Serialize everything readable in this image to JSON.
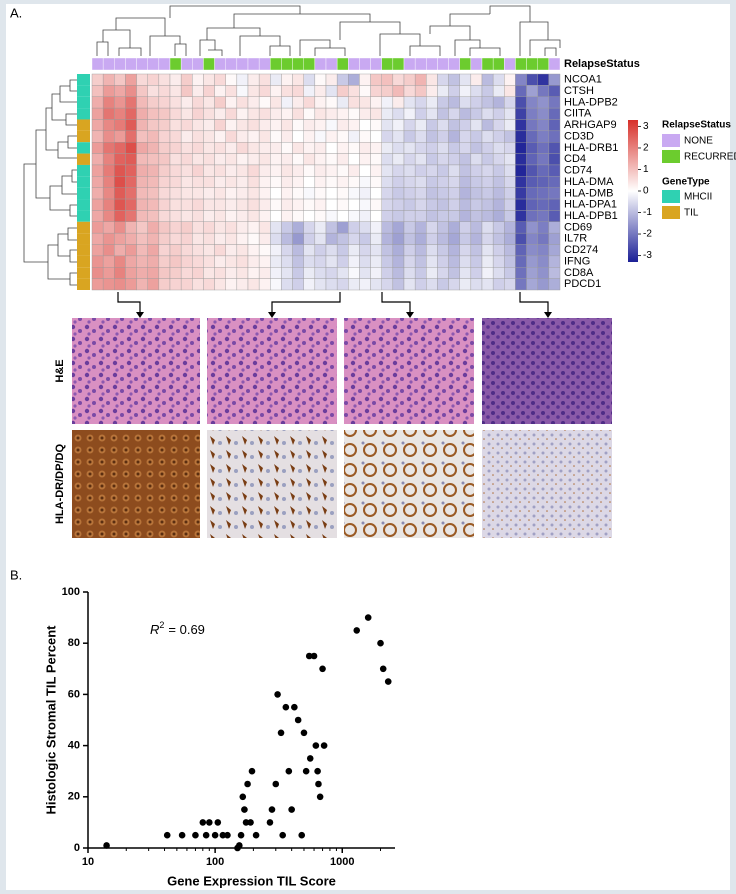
{
  "panel_labels": [
    "A.",
    "B."
  ],
  "image_row_labels": [
    "H&E",
    "HLA-DR/DP/DQ"
  ],
  "chart_data": [
    {
      "type": "heatmap",
      "rows": [
        "NCOA1",
        "CTSH",
        "HLA-DPB2",
        "CIITA",
        "ARHGAP9",
        "CD3D",
        "HLA-DRB1",
        "CD4",
        "CD74",
        "HLA-DMA",
        "HLA-DMB",
        "HLA-DPA1",
        "HLA-DPB1",
        "CD69",
        "IL7R",
        "CD274",
        "IFNG",
        "CD8A",
        "PDCD1"
      ],
      "column_annotation_title": "RelapseStatus",
      "column_annotation_levels": [
        {
          "name": "NONE",
          "color": "#c9a9f2"
        },
        {
          "name": "RECURRED",
          "color": "#6ccc2e"
        }
      ],
      "column_annotation": [
        0,
        0,
        0,
        0,
        0,
        0,
        0,
        1,
        0,
        0,
        1,
        0,
        0,
        0,
        0,
        0,
        1,
        1,
        1,
        1,
        0,
        0,
        1,
        0,
        0,
        0,
        1,
        1,
        0,
        0,
        0,
        0,
        0,
        1,
        0,
        1,
        1,
        0,
        1,
        1,
        1,
        0
      ],
      "row_annotation_title": "GeneType",
      "row_annotation_levels": [
        {
          "name": "MHCII",
          "color": "#2fd1b2"
        },
        {
          "name": "TIL",
          "color": "#d9a521"
        }
      ],
      "row_annotation": [
        0,
        0,
        0,
        0,
        1,
        1,
        0,
        1,
        0,
        0,
        0,
        0,
        0,
        1,
        1,
        1,
        1,
        1,
        1
      ],
      "colorbar_lim": [
        -3.3,
        3.3
      ],
      "colorbar_ticks": [
        3,
        2,
        1,
        0,
        -1,
        -2,
        -3
      ],
      "colors": {
        "low": "#1b1f96",
        "mid": "#ffffff",
        "high": "#d7302a"
      },
      "matrix": [
        [
          0.8,
          1.2,
          0.9,
          1.5,
          0.6,
          0.7,
          0.5,
          0.3,
          0.8,
          0.2,
          0.4,
          0.6,
          0.1,
          -0.2,
          0.3,
          0.5,
          -0.3,
          0.2,
          0.4,
          -0.5,
          0.1,
          0.3,
          -0.8,
          -1.2,
          0.2,
          0.9,
          1.0,
          0.6,
          0.8,
          1.2,
          0.4,
          -0.6,
          -0.9,
          -0.4,
          0.3,
          -1.0,
          -0.5,
          0.2,
          -1.8,
          -2.6,
          -3.0,
          -1.5
        ],
        [
          1.0,
          1.6,
          1.4,
          1.8,
          0.9,
          0.5,
          0.6,
          0.4,
          0.9,
          0.3,
          0.7,
          0.2,
          0.5,
          -0.1,
          0.4,
          0.6,
          0.2,
          0.5,
          0.6,
          -0.2,
          0.3,
          -0.4,
          0.8,
          0.5,
          0.1,
          0.7,
          0.8,
          1.1,
          0.6,
          0.9,
          0.3,
          -0.3,
          -0.7,
          -0.2,
          -0.5,
          -0.8,
          -0.3,
          0.4,
          -2.2,
          -1.4,
          -2.0,
          -2.4
        ],
        [
          1.3,
          2.0,
          1.7,
          2.2,
          1.1,
          0.8,
          0.7,
          0.5,
          0.3,
          0.6,
          0.4,
          0.8,
          0.2,
          0.5,
          0.3,
          0.1,
          0.4,
          -0.2,
          0.3,
          0.6,
          0.2,
          0.1,
          -0.3,
          0.5,
          0.4,
          0.2,
          -0.2,
          0.3,
          -0.4,
          -0.6,
          -0.3,
          -0.8,
          -1.0,
          -0.5,
          -0.7,
          -0.9,
          -1.1,
          -0.6,
          -2.6,
          -1.8,
          -1.6,
          -2.0
        ],
        [
          1.5,
          2.2,
          2.0,
          2.4,
          1.3,
          1.0,
          0.9,
          0.6,
          0.4,
          0.7,
          0.5,
          0.3,
          0.6,
          0.2,
          0.4,
          0.5,
          0.3,
          0.2,
          0.5,
          0.1,
          0.4,
          0.3,
          0.2,
          0.1,
          0.3,
          0.4,
          -0.3,
          -0.5,
          -0.2,
          -0.7,
          -0.4,
          -0.9,
          -0.6,
          -1.0,
          -0.8,
          -0.5,
          -0.7,
          -0.4,
          -2.8,
          -1.9,
          -1.7,
          -2.2
        ],
        [
          1.4,
          1.9,
          2.1,
          2.6,
          1.2,
          0.9,
          0.8,
          0.5,
          0.6,
          0.4,
          0.3,
          0.7,
          0.2,
          0.4,
          0.5,
          0.3,
          0.2,
          0.4,
          0.1,
          0.3,
          0.2,
          -0.1,
          0.3,
          0.2,
          0.0,
          0.1,
          -0.4,
          -0.2,
          -0.6,
          -0.3,
          -0.8,
          -0.5,
          -0.9,
          -0.7,
          -0.4,
          -1.0,
          -0.6,
          -0.3,
          -3.0,
          -2.0,
          -1.8,
          -2.3
        ],
        [
          1.2,
          1.8,
          1.6,
          2.3,
          1.0,
          1.1,
          0.7,
          0.6,
          0.3,
          0.5,
          0.4,
          0.2,
          0.6,
          0.3,
          0.2,
          0.4,
          0.1,
          0.3,
          0.0,
          0.2,
          -0.1,
          0.2,
          0.1,
          -0.2,
          0.1,
          0.0,
          -0.6,
          -0.4,
          -0.8,
          -0.5,
          -0.9,
          -0.7,
          -1.1,
          -0.6,
          -0.8,
          -0.5,
          -0.7,
          -0.9,
          -3.1,
          -2.2,
          -1.9,
          -2.1
        ],
        [
          1.6,
          2.2,
          2.4,
          2.8,
          1.4,
          1.2,
          0.8,
          0.7,
          0.5,
          0.6,
          0.4,
          0.5,
          0.3,
          0.6,
          0.4,
          0.3,
          0.3,
          0.1,
          0.4,
          0.2,
          0.3,
          0.0,
          0.2,
          0.1,
          0.3,
          0.2,
          -0.3,
          -0.5,
          -0.4,
          -0.6,
          -0.7,
          -0.5,
          -0.8,
          -0.6,
          -0.9,
          -0.7,
          -0.5,
          -0.6,
          -3.2,
          -2.4,
          -2.1,
          -2.5
        ],
        [
          1.3,
          2.0,
          2.5,
          2.6,
          1.1,
          1.0,
          0.9,
          0.5,
          0.6,
          0.4,
          0.5,
          0.3,
          0.4,
          0.2,
          0.3,
          0.4,
          0.2,
          0.3,
          0.1,
          0.4,
          0.2,
          0.1,
          0.3,
          0.0,
          0.2,
          0.1,
          -0.5,
          -0.3,
          -0.6,
          -0.4,
          -0.8,
          -0.6,
          -0.7,
          -0.9,
          -0.5,
          -0.8,
          -0.6,
          -0.4,
          -3.1,
          -2.3,
          -2.0,
          -2.6
        ],
        [
          1.5,
          2.1,
          2.7,
          2.5,
          1.3,
          1.2,
          0.8,
          0.6,
          0.5,
          0.7,
          0.4,
          0.5,
          0.3,
          0.4,
          0.6,
          0.3,
          0.2,
          0.4,
          0.3,
          0.1,
          0.3,
          0.2,
          0.1,
          0.3,
          0.0,
          0.2,
          -0.4,
          -0.6,
          -0.5,
          -0.7,
          -0.6,
          -0.8,
          -0.5,
          -0.9,
          -0.7,
          -0.6,
          -0.8,
          -0.5,
          -3.2,
          -2.5,
          -2.2,
          -2.4
        ],
        [
          1.4,
          2.0,
          2.8,
          2.4,
          1.2,
          1.1,
          0.7,
          0.6,
          0.4,
          0.5,
          0.5,
          0.3,
          0.4,
          0.3,
          0.5,
          0.2,
          0.1,
          0.3,
          0.2,
          0.0,
          0.2,
          0.1,
          0.2,
          0.1,
          -0.1,
          0.1,
          -0.5,
          -0.7,
          -0.6,
          -0.5,
          -0.8,
          -0.7,
          -0.6,
          -1.0,
          -0.8,
          -0.7,
          -0.9,
          -0.6,
          -3.0,
          -2.4,
          -2.3,
          -2.2
        ],
        [
          1.3,
          1.9,
          2.6,
          2.3,
          1.1,
          1.0,
          0.6,
          0.5,
          0.4,
          0.4,
          0.3,
          0.4,
          0.2,
          0.3,
          0.4,
          0.2,
          0.0,
          0.2,
          0.1,
          -0.1,
          0.1,
          0.0,
          0.1,
          -0.1,
          -0.2,
          0.0,
          -0.6,
          -0.8,
          -0.7,
          -0.6,
          -0.9,
          -0.8,
          -0.7,
          -1.1,
          -0.9,
          -0.8,
          -1.0,
          -0.7,
          -2.9,
          -2.2,
          -2.1,
          -2.0
        ],
        [
          1.5,
          2.0,
          2.7,
          2.4,
          1.2,
          1.1,
          0.7,
          0.5,
          0.5,
          0.6,
          0.4,
          0.4,
          0.3,
          0.4,
          0.5,
          0.3,
          0.1,
          0.3,
          0.2,
          0.1,
          0.2,
          0.0,
          0.1,
          0.0,
          -0.1,
          0.1,
          -0.6,
          -0.7,
          -0.8,
          -0.6,
          -0.8,
          -0.9,
          -0.7,
          -1.0,
          -0.8,
          -0.9,
          -1.1,
          -0.7,
          -3.1,
          -2.3,
          -2.2,
          -2.3
        ],
        [
          1.4,
          1.9,
          2.5,
          2.2,
          1.1,
          1.0,
          0.6,
          0.5,
          0.4,
          0.5,
          0.3,
          0.4,
          0.2,
          0.3,
          0.4,
          0.2,
          0.0,
          0.2,
          0.1,
          0.0,
          0.1,
          -0.1,
          0.0,
          -0.1,
          -0.2,
          0.0,
          -0.7,
          -0.8,
          -0.7,
          -0.7,
          -0.9,
          -0.8,
          -0.8,
          -1.1,
          -0.9,
          -1.0,
          -1.2,
          -0.8,
          -3.0,
          -2.1,
          -2.0,
          -2.4
        ],
        [
          1.6,
          1.4,
          1.8,
          1.2,
          0.9,
          1.3,
          0.9,
          0.7,
          0.8,
          0.5,
          0.6,
          0.4,
          0.5,
          0.3,
          0.2,
          0.4,
          -0.4,
          -0.8,
          -1.2,
          -0.6,
          -0.3,
          -0.9,
          -1.4,
          -0.7,
          -0.5,
          -0.2,
          -1.0,
          -1.3,
          -0.8,
          -1.1,
          -0.6,
          -0.9,
          -1.2,
          -0.7,
          -1.0,
          -0.5,
          -0.8,
          -1.1,
          -2.4,
          -1.6,
          -1.9,
          -1.2
        ],
        [
          1.4,
          1.7,
          1.5,
          1.3,
          1.0,
          1.2,
          0.8,
          0.6,
          0.7,
          0.4,
          0.5,
          0.3,
          0.4,
          0.2,
          0.1,
          0.3,
          -0.5,
          -1.0,
          -1.5,
          -0.7,
          -0.4,
          -1.1,
          -0.9,
          -0.6,
          -0.8,
          -0.3,
          -1.1,
          -1.4,
          -0.9,
          -1.2,
          -0.7,
          -1.0,
          -1.3,
          -0.8,
          -1.1,
          -0.6,
          -0.9,
          -1.2,
          -2.6,
          -1.8,
          -2.0,
          -1.4
        ],
        [
          1.5,
          1.8,
          1.3,
          1.6,
          1.1,
          1.4,
          0.7,
          0.8,
          0.6,
          0.5,
          0.4,
          0.6,
          0.3,
          0.4,
          0.2,
          0.1,
          -0.2,
          -0.6,
          -1.0,
          -0.4,
          -0.7,
          -0.5,
          -0.8,
          -0.3,
          -0.6,
          -0.4,
          -0.9,
          -1.2,
          -0.7,
          -1.0,
          -0.5,
          -0.8,
          -1.1,
          -0.6,
          -0.9,
          -0.4,
          -0.7,
          -1.0,
          -2.3,
          -1.7,
          -1.8,
          -1.3
        ],
        [
          1.7,
          1.5,
          1.9,
          1.4,
          1.2,
          1.3,
          0.8,
          0.9,
          0.7,
          0.6,
          0.5,
          0.3,
          0.4,
          0.5,
          0.3,
          0.2,
          -0.3,
          -0.5,
          -0.9,
          -0.5,
          -0.6,
          -0.4,
          -0.7,
          -0.2,
          -0.5,
          -0.3,
          -0.8,
          -1.1,
          -0.6,
          -0.9,
          -0.4,
          -0.7,
          -1.0,
          -0.5,
          -0.8,
          -0.3,
          -0.6,
          -0.9,
          -2.2,
          -1.5,
          -1.7,
          -1.1
        ],
        [
          1.8,
          1.6,
          2.0,
          1.5,
          1.3,
          1.4,
          0.9,
          0.8,
          0.6,
          0.7,
          0.4,
          0.5,
          0.3,
          0.4,
          0.2,
          0.3,
          -0.2,
          -0.4,
          -0.8,
          -0.3,
          -0.5,
          -0.6,
          -0.4,
          -0.1,
          -0.4,
          -0.2,
          -0.7,
          -1.0,
          -0.5,
          -0.8,
          -0.3,
          -0.6,
          -0.9,
          -0.4,
          -0.7,
          -0.2,
          -0.5,
          -0.8,
          -2.1,
          -1.4,
          -1.6,
          -1.0
        ],
        [
          1.6,
          1.7,
          1.8,
          1.6,
          1.2,
          1.5,
          0.8,
          0.7,
          0.7,
          0.5,
          0.6,
          0.4,
          0.2,
          0.3,
          0.4,
          0.2,
          -0.1,
          -0.5,
          -0.7,
          -0.2,
          -0.4,
          -0.5,
          -0.6,
          -0.3,
          -0.2,
          -0.4,
          -0.6,
          -0.9,
          -0.4,
          -0.7,
          -0.5,
          -0.8,
          -0.6,
          -0.3,
          -0.5,
          -0.4,
          -0.7,
          -0.6,
          -2.0,
          -1.3,
          -1.5,
          -1.2
        ]
      ]
    },
    {
      "type": "scatter",
      "annotation": {
        "symbol": "R",
        "exponent": "2",
        "text": "= 0.69"
      },
      "x_label": "Gene Expression TIL Score",
      "y_label": "Histologic Stromal TIL Percent",
      "x_scale": "log",
      "xlim": [
        10,
        2600
      ],
      "xticks": [
        10,
        100,
        1000
      ],
      "ylim": [
        0,
        100
      ],
      "yticks": [
        0,
        20,
        40,
        60,
        80,
        100
      ],
      "color": "#000000",
      "x": [
        14,
        42,
        55,
        70,
        80,
        85,
        90,
        100,
        105,
        115,
        125,
        150,
        155,
        160,
        165,
        170,
        175,
        180,
        190,
        195,
        210,
        270,
        280,
        300,
        310,
        330,
        340,
        360,
        380,
        400,
        420,
        450,
        480,
        500,
        520,
        550,
        560,
        600,
        620,
        640,
        650,
        670,
        700,
        720,
        1300,
        1600,
        2000,
        2100,
        2300
      ],
      "y": [
        1,
        5,
        5,
        5,
        10,
        5,
        10,
        5,
        10,
        5,
        5,
        0,
        1,
        5,
        20,
        15,
        10,
        25,
        10,
        30,
        5,
        10,
        15,
        25,
        60,
        45,
        5,
        55,
        30,
        15,
        55,
        50,
        5,
        45,
        30,
        75,
        35,
        75,
        40,
        30,
        25,
        20,
        70,
        40,
        85,
        90,
        80,
        70,
        65
      ]
    }
  ]
}
